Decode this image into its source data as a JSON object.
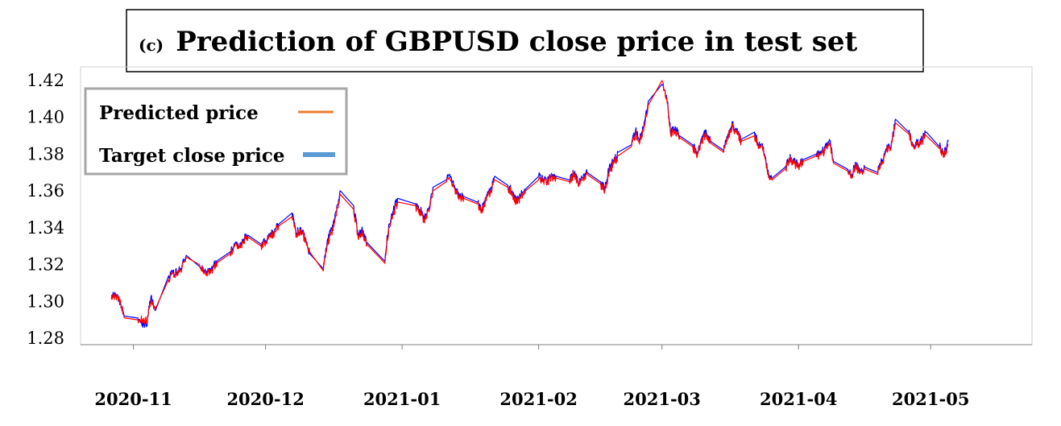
{
  "chart_data": {
    "type": "line",
    "title_prefix": "(c)",
    "title": "Prediction of GBPUSD close price in test set",
    "xlabel": "",
    "ylabel": "",
    "ylim": [
      1.28,
      1.42
    ],
    "yticks": [
      1.28,
      1.3,
      1.32,
      1.34,
      1.36,
      1.38,
      1.4,
      1.42
    ],
    "xticks": [
      "2020-11",
      "2020-12",
      "2021-01",
      "2021-02",
      "2021-03",
      "2021-04",
      "2021-05"
    ],
    "xlim": [
      "2020-10-20",
      "2021-05-24"
    ],
    "grid": false,
    "legend_position": "top-left",
    "series": [
      {
        "name": "Target close price",
        "color": "#0000ff",
        "legend_color": "#5b9bd5",
        "x": [
          "2020-10-27",
          "2020-10-28",
          "2020-10-29",
          "2020-10-30",
          "2020-11-02",
          "2020-11-03",
          "2020-11-04",
          "2020-11-05",
          "2020-11-06",
          "2020-11-09",
          "2020-11-10",
          "2020-11-11",
          "2020-11-12",
          "2020-11-13",
          "2020-11-16",
          "2020-11-17",
          "2020-11-18",
          "2020-11-19",
          "2020-11-20",
          "2020-11-23",
          "2020-11-24",
          "2020-11-25",
          "2020-11-26",
          "2020-11-27",
          "2020-11-30",
          "2020-12-01",
          "2020-12-02",
          "2020-12-03",
          "2020-12-04",
          "2020-12-07",
          "2020-12-08",
          "2020-12-09",
          "2020-12-10",
          "2020-12-11",
          "2020-12-14",
          "2020-12-15",
          "2020-12-16",
          "2020-12-17",
          "2020-12-18",
          "2020-12-21",
          "2020-12-22",
          "2020-12-23",
          "2020-12-24",
          "2020-12-28",
          "2020-12-29",
          "2020-12-30",
          "2020-12-31",
          "2021-01-04",
          "2021-01-05",
          "2021-01-06",
          "2021-01-07",
          "2021-01-08",
          "2021-01-11",
          "2021-01-12",
          "2021-01-13",
          "2021-01-14",
          "2021-01-15",
          "2021-01-18",
          "2021-01-19",
          "2021-01-20",
          "2021-01-21",
          "2021-01-22",
          "2021-01-25",
          "2021-01-26",
          "2021-01-27",
          "2021-01-28",
          "2021-01-29",
          "2021-02-01",
          "2021-02-02",
          "2021-02-03",
          "2021-02-04",
          "2021-02-05",
          "2021-02-08",
          "2021-02-09",
          "2021-02-10",
          "2021-02-11",
          "2021-02-12",
          "2021-02-15",
          "2021-02-16",
          "2021-02-17",
          "2021-02-18",
          "2021-02-19",
          "2021-02-22",
          "2021-02-23",
          "2021-02-24",
          "2021-02-25",
          "2021-02-26",
          "2021-03-01",
          "2021-03-02",
          "2021-03-03",
          "2021-03-04",
          "2021-03-05",
          "2021-03-08",
          "2021-03-09",
          "2021-03-10",
          "2021-03-11",
          "2021-03-12",
          "2021-03-15",
          "2021-03-16",
          "2021-03-17",
          "2021-03-18",
          "2021-03-19",
          "2021-03-22",
          "2021-03-23",
          "2021-03-24",
          "2021-03-25",
          "2021-03-26",
          "2021-03-29",
          "2021-03-30",
          "2021-03-31",
          "2021-04-01",
          "2021-04-02",
          "2021-04-05",
          "2021-04-06",
          "2021-04-07",
          "2021-04-08",
          "2021-04-09",
          "2021-04-12",
          "2021-04-13",
          "2021-04-14",
          "2021-04-15",
          "2021-04-16",
          "2021-04-19",
          "2021-04-20",
          "2021-04-21",
          "2021-04-22",
          "2021-04-23",
          "2021-04-26",
          "2021-04-27",
          "2021-04-28",
          "2021-04-29",
          "2021-04-30",
          "2021-05-03",
          "2021-05-04",
          "2021-05-05"
        ],
        "values": [
          1.302,
          1.304,
          1.3,
          1.292,
          1.291,
          1.288,
          1.287,
          1.303,
          1.295,
          1.314,
          1.316,
          1.316,
          1.319,
          1.325,
          1.319,
          1.316,
          1.317,
          1.318,
          1.322,
          1.327,
          1.331,
          1.33,
          1.334,
          1.336,
          1.331,
          1.333,
          1.336,
          1.338,
          1.342,
          1.348,
          1.337,
          1.34,
          1.334,
          1.326,
          1.318,
          1.333,
          1.339,
          1.349,
          1.36,
          1.352,
          1.336,
          1.339,
          1.332,
          1.322,
          1.342,
          1.349,
          1.356,
          1.353,
          1.35,
          1.345,
          1.35,
          1.362,
          1.366,
          1.368,
          1.362,
          1.357,
          1.357,
          1.354,
          1.35,
          1.356,
          1.36,
          1.368,
          1.363,
          1.36,
          1.354,
          1.358,
          1.361,
          1.368,
          1.366,
          1.365,
          1.369,
          1.368,
          1.366,
          1.37,
          1.364,
          1.367,
          1.37,
          1.365,
          1.362,
          1.372,
          1.376,
          1.381,
          1.385,
          1.393,
          1.388,
          1.398,
          1.409,
          1.418,
          1.412,
          1.392,
          1.395,
          1.39,
          1.385,
          1.38,
          1.387,
          1.393,
          1.387,
          1.382,
          1.391,
          1.396,
          1.392,
          1.388,
          1.392,
          1.385,
          1.384,
          1.37,
          1.367,
          1.373,
          1.378,
          1.376,
          1.374,
          1.377,
          1.38,
          1.381,
          1.383,
          1.388,
          1.376,
          1.372,
          1.369,
          1.374,
          1.371,
          1.373,
          1.37,
          1.377,
          1.383,
          1.384,
          1.399,
          1.392,
          1.385,
          1.386,
          1.388,
          1.392,
          1.384,
          1.38,
          1.387
        ]
      },
      {
        "name": "Predicted price",
        "color": "#ff0000",
        "legend_color": "#ed7d31",
        "x": [
          "2020-10-27",
          "2020-10-28",
          "2020-10-29",
          "2020-10-30",
          "2020-11-02",
          "2020-11-03",
          "2020-11-04",
          "2020-11-05",
          "2020-11-06",
          "2020-11-09",
          "2020-11-10",
          "2020-11-11",
          "2020-11-12",
          "2020-11-13",
          "2020-11-16",
          "2020-11-17",
          "2020-11-18",
          "2020-11-19",
          "2020-11-20",
          "2020-11-23",
          "2020-11-24",
          "2020-11-25",
          "2020-11-26",
          "2020-11-27",
          "2020-11-30",
          "2020-12-01",
          "2020-12-02",
          "2020-12-03",
          "2020-12-04",
          "2020-12-07",
          "2020-12-08",
          "2020-12-09",
          "2020-12-10",
          "2020-12-11",
          "2020-12-14",
          "2020-12-15",
          "2020-12-16",
          "2020-12-17",
          "2020-12-18",
          "2020-12-21",
          "2020-12-22",
          "2020-12-23",
          "2020-12-24",
          "2020-12-28",
          "2020-12-29",
          "2020-12-30",
          "2020-12-31",
          "2021-01-04",
          "2021-01-05",
          "2021-01-06",
          "2021-01-07",
          "2021-01-08",
          "2021-01-11",
          "2021-01-12",
          "2021-01-13",
          "2021-01-14",
          "2021-01-15",
          "2021-01-18",
          "2021-01-19",
          "2021-01-20",
          "2021-01-21",
          "2021-01-22",
          "2021-01-25",
          "2021-01-26",
          "2021-01-27",
          "2021-01-28",
          "2021-01-29",
          "2021-02-01",
          "2021-02-02",
          "2021-02-03",
          "2021-02-04",
          "2021-02-05",
          "2021-02-08",
          "2021-02-09",
          "2021-02-10",
          "2021-02-11",
          "2021-02-12",
          "2021-02-15",
          "2021-02-16",
          "2021-02-17",
          "2021-02-18",
          "2021-02-19",
          "2021-02-22",
          "2021-02-23",
          "2021-02-24",
          "2021-02-25",
          "2021-02-26",
          "2021-03-01",
          "2021-03-02",
          "2021-03-03",
          "2021-03-04",
          "2021-03-05",
          "2021-03-08",
          "2021-03-09",
          "2021-03-10",
          "2021-03-11",
          "2021-03-12",
          "2021-03-15",
          "2021-03-16",
          "2021-03-17",
          "2021-03-18",
          "2021-03-19",
          "2021-03-22",
          "2021-03-23",
          "2021-03-24",
          "2021-03-25",
          "2021-03-26",
          "2021-03-29",
          "2021-03-30",
          "2021-03-31",
          "2021-04-01",
          "2021-04-02",
          "2021-04-05",
          "2021-04-06",
          "2021-04-07",
          "2021-04-08",
          "2021-04-09",
          "2021-04-12",
          "2021-04-13",
          "2021-04-14",
          "2021-04-15",
          "2021-04-16",
          "2021-04-19",
          "2021-04-20",
          "2021-04-21",
          "2021-04-22",
          "2021-04-23",
          "2021-04-26",
          "2021-04-27",
          "2021-04-28",
          "2021-04-29",
          "2021-04-30",
          "2021-05-03",
          "2021-05-04",
          "2021-05-05"
        ],
        "values": [
          1.301,
          1.303,
          1.301,
          1.291,
          1.29,
          1.29,
          1.289,
          1.3,
          1.296,
          1.312,
          1.315,
          1.315,
          1.318,
          1.324,
          1.32,
          1.315,
          1.316,
          1.317,
          1.321,
          1.326,
          1.33,
          1.329,
          1.333,
          1.335,
          1.33,
          1.332,
          1.335,
          1.337,
          1.341,
          1.346,
          1.336,
          1.339,
          1.333,
          1.327,
          1.317,
          1.331,
          1.337,
          1.347,
          1.358,
          1.35,
          1.335,
          1.337,
          1.331,
          1.321,
          1.34,
          1.347,
          1.354,
          1.352,
          1.349,
          1.344,
          1.349,
          1.36,
          1.365,
          1.366,
          1.361,
          1.356,
          1.356,
          1.353,
          1.349,
          1.355,
          1.359,
          1.366,
          1.362,
          1.359,
          1.353,
          1.357,
          1.36,
          1.366,
          1.365,
          1.364,
          1.368,
          1.367,
          1.365,
          1.369,
          1.363,
          1.366,
          1.369,
          1.364,
          1.36,
          1.37,
          1.375,
          1.379,
          1.384,
          1.391,
          1.387,
          1.396,
          1.407,
          1.42,
          1.411,
          1.39,
          1.393,
          1.389,
          1.384,
          1.379,
          1.386,
          1.391,
          1.386,
          1.381,
          1.39,
          1.395,
          1.391,
          1.387,
          1.39,
          1.384,
          1.383,
          1.369,
          1.366,
          1.372,
          1.377,
          1.375,
          1.373,
          1.376,
          1.379,
          1.38,
          1.382,
          1.386,
          1.375,
          1.371,
          1.368,
          1.373,
          1.37,
          1.372,
          1.369,
          1.376,
          1.382,
          1.383,
          1.397,
          1.391,
          1.384,
          1.385,
          1.387,
          1.39,
          1.383,
          1.379,
          1.385
        ]
      }
    ]
  }
}
